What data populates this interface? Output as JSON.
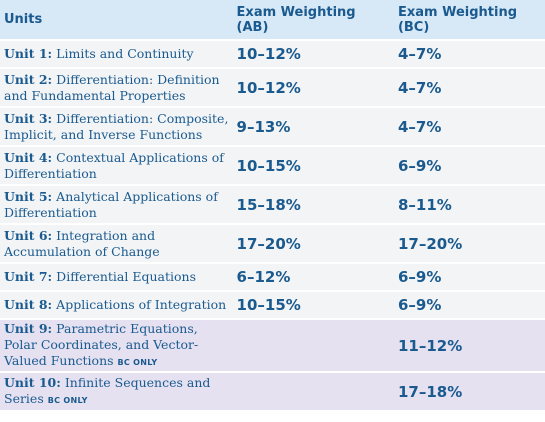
{
  "header": {
    "units": "Units",
    "ab": "Exam Weighting (AB)",
    "bc": "Exam Weighting (BC)"
  },
  "rows": [
    {
      "num": "Unit 1:",
      "title": "Limits and Continuity",
      "ab": "10–12%",
      "bc": "4–7%",
      "bc_only": ""
    },
    {
      "num": "Unit 2:",
      "title": "Differentiation: Definition and Fundamental Properties",
      "ab": "10–12%",
      "bc": "4–7%",
      "bc_only": ""
    },
    {
      "num": "Unit 3:",
      "title": "Differentiation: Composite, Implicit, and Inverse Functions",
      "ab": "9–13%",
      "bc": "4–7%",
      "bc_only": ""
    },
    {
      "num": "Unit 4:",
      "title": "Contextual Applications of Differentiation",
      "ab": "10–15%",
      "bc": "6–9%",
      "bc_only": ""
    },
    {
      "num": "Unit 5:",
      "title": "Analytical Applications of Differentiation",
      "ab": "15–18%",
      "bc": "8–11%",
      "bc_only": ""
    },
    {
      "num": "Unit 6:",
      "title": "Integration and Accumulation of Change",
      "ab": "17–20%",
      "bc": "17–20%",
      "bc_only": ""
    },
    {
      "num": "Unit 7:",
      "title": "Differential Equations",
      "ab": "6–12%",
      "bc": "6–9%",
      "bc_only": ""
    },
    {
      "num": "Unit 8:",
      "title": "Applications of Integration",
      "ab": "10–15%",
      "bc": "6–9%",
      "bc_only": ""
    },
    {
      "num": "Unit 9:",
      "title": "Parametric Equations, Polar Coordinates, and Vector-Valued Functions",
      "ab": "",
      "bc": "11–12%",
      "bc_only": "BC ONLY"
    },
    {
      "num": "Unit 10:",
      "title": "Infinite Sequences and Series",
      "ab": "",
      "bc": "17–18%",
      "bc_only": "BC ONLY"
    }
  ]
}
